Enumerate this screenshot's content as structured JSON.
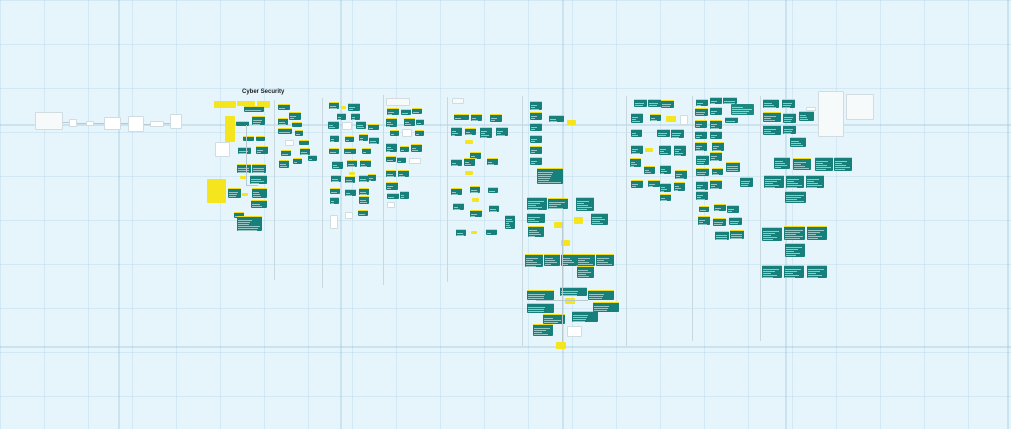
{
  "board": {
    "title": "Cyber Security"
  },
  "colors": {
    "canvas_bg": "#e6f5fc",
    "card_teal": "#17807a",
    "card_header_yellow": "#f0dc19",
    "sticky_yellow": "#f4e51e"
  }
}
